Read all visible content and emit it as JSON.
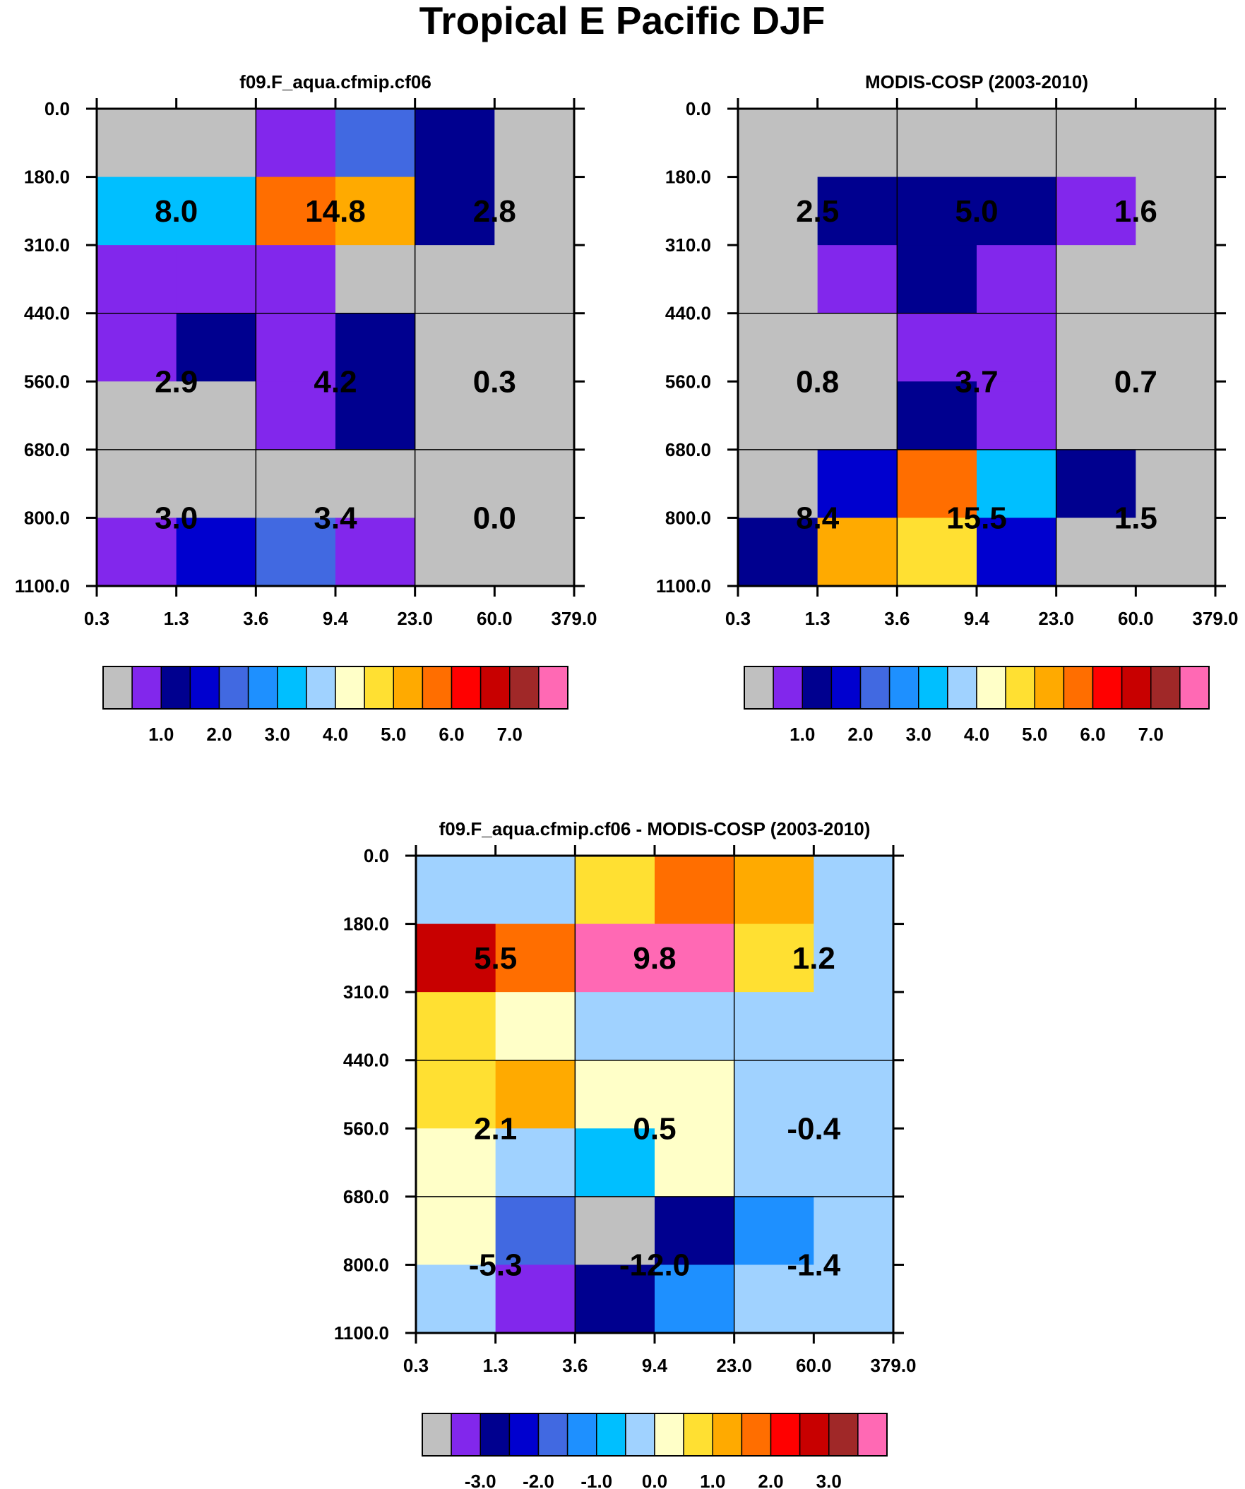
{
  "figure": {
    "title": "Tropical E Pacific DJF"
  },
  "colors": {
    "scale": [
      "#c0c0c0",
      "#8227ec",
      "#00008f",
      "#0000cf",
      "#4169e1",
      "#1e90ff",
      "#00bfff",
      "#a0d2ff",
      "#ffffc8",
      "#ffe032",
      "#ffaa00",
      "#ff6e00",
      "#ff0000",
      "#c80000",
      "#a02828",
      "#ff69b4"
    ],
    "grid": "#000000"
  },
  "chart_data": [
    {
      "type": "heatmap",
      "title": "f09.F_aqua.cfmip.cf06",
      "x_ticks": [
        "0.3",
        "1.3",
        "3.6",
        "9.4",
        "23.0",
        "60.0",
        "379.0"
      ],
      "y_ticks": [
        "0.0",
        "180.0",
        "310.0",
        "440.0",
        "560.0",
        "680.0",
        "800.0",
        "1100.0"
      ],
      "cells": [
        [
          0,
          0,
          1,
          4,
          2,
          0
        ],
        [
          6,
          6,
          11,
          10,
          2,
          0
        ],
        [
          1,
          1,
          1,
          0,
          0,
          0
        ],
        [
          1,
          2,
          1,
          2,
          0,
          0
        ],
        [
          0,
          0,
          1,
          2,
          0,
          0
        ],
        [
          0,
          0,
          0,
          0,
          0,
          0
        ],
        [
          1,
          3,
          4,
          1,
          0,
          0
        ]
      ],
      "box_values": [
        [
          "8.0",
          "14.8",
          "2.8"
        ],
        [
          "2.9",
          "4.2",
          "0.3"
        ],
        [
          "3.0",
          "3.4",
          "0.0"
        ]
      ],
      "colorbar_labels": [
        "1.0",
        "2.0",
        "3.0",
        "4.0",
        "5.0",
        "6.0",
        "7.0"
      ]
    },
    {
      "type": "heatmap",
      "title": "MODIS-COSP (2003-2010)",
      "x_ticks": [
        "0.3",
        "1.3",
        "3.6",
        "9.4",
        "23.0",
        "60.0",
        "379.0"
      ],
      "y_ticks": [
        "0.0",
        "180.0",
        "310.0",
        "440.0",
        "560.0",
        "680.0",
        "800.0",
        "1100.0"
      ],
      "cells": [
        [
          0,
          0,
          0,
          0,
          0,
          0
        ],
        [
          0,
          2,
          2,
          2,
          1,
          0
        ],
        [
          0,
          1,
          2,
          1,
          0,
          0
        ],
        [
          0,
          0,
          1,
          1,
          0,
          0
        ],
        [
          0,
          0,
          2,
          1,
          0,
          0
        ],
        [
          0,
          3,
          11,
          6,
          2,
          0
        ],
        [
          2,
          10,
          9,
          3,
          0,
          0
        ]
      ],
      "box_values": [
        [
          "2.5",
          "5.0",
          "1.6"
        ],
        [
          "0.8",
          "3.7",
          "0.7"
        ],
        [
          "8.4",
          "15.5",
          "1.5"
        ]
      ],
      "colorbar_labels": [
        "1.0",
        "2.0",
        "3.0",
        "4.0",
        "5.0",
        "6.0",
        "7.0"
      ]
    },
    {
      "type": "heatmap",
      "title": "f09.F_aqua.cfmip.cf06 - MODIS-COSP (2003-2010)",
      "x_ticks": [
        "0.3",
        "1.3",
        "3.6",
        "9.4",
        "23.0",
        "60.0",
        "379.0"
      ],
      "y_ticks": [
        "0.0",
        "180.0",
        "310.0",
        "440.0",
        "560.0",
        "680.0",
        "800.0",
        "1100.0"
      ],
      "cells": [
        [
          7,
          7,
          9,
          11,
          10,
          7
        ],
        [
          13,
          11,
          15,
          15,
          9,
          7
        ],
        [
          9,
          8,
          7,
          7,
          7,
          7
        ],
        [
          9,
          10,
          8,
          8,
          7,
          7
        ],
        [
          8,
          7,
          6,
          8,
          7,
          7
        ],
        [
          8,
          4,
          0,
          2,
          5,
          7
        ],
        [
          7,
          1,
          2,
          5,
          7,
          7
        ]
      ],
      "box_values": [
        [
          "5.5",
          "9.8",
          "1.2"
        ],
        [
          "2.1",
          "0.5",
          "-0.4"
        ],
        [
          "-5.3",
          "-12.0",
          "-1.4"
        ]
      ],
      "colorbar_labels": [
        "-3.0",
        "-2.0",
        "-1.0",
        "0.0",
        "1.0",
        "2.0",
        "3.0"
      ]
    }
  ]
}
